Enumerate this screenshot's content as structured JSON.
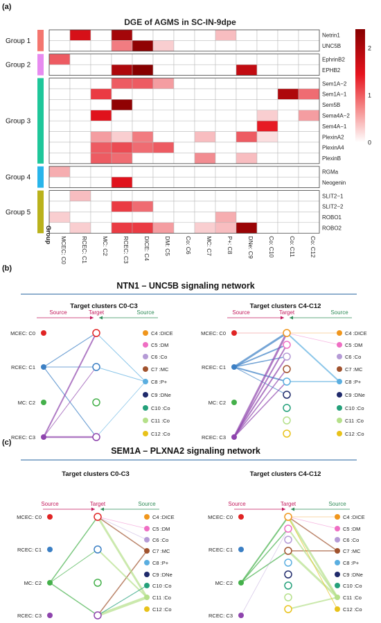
{
  "panel_a": {
    "letter": "(a)",
    "title": "DGE of AGMS in SC-IN-9dpe",
    "axis_label": "Group",
    "columns": [
      "MCEC: C0",
      "RCEC: C1",
      "MC: C2",
      "RCEC: C3",
      "DICE: C4",
      "DM: C5",
      "Co: C6",
      "MC: C7",
      "P+: C8",
      "DNe: C9",
      "Co: C10",
      "Co: C11",
      "Co: C12"
    ],
    "groups": [
      {
        "name": "Group 1",
        "color": "#f4766f",
        "rows": [
          "Netrin1",
          "UNC5B"
        ]
      },
      {
        "name": "Group 2",
        "color": "#e78bf0",
        "rows": [
          "EphrinB2",
          "EPHB2"
        ]
      },
      {
        "name": "Group 3",
        "color": "#1fc79a",
        "rows": [
          "Sem1A−2",
          "Sem1A−1",
          "Sem5B",
          "Sema4A−2",
          "Sem4A−1",
          "PlexinA2",
          "PlexinA4",
          "PlexinB"
        ]
      },
      {
        "name": "Group 4",
        "color": "#29b5ea",
        "rows": [
          "RGMa",
          "Neogenin"
        ]
      },
      {
        "name": "Group 5",
        "color": "#bab21c",
        "rows": [
          "SLIT2−1",
          "SLIT2−2",
          "ROBO1",
          "ROBO2"
        ]
      }
    ],
    "chart_data": {
      "type": "heatmap",
      "title": "DGE of AGMS in SC-IN-9dpe",
      "x_categories": [
        "MCEC: C0",
        "RCEC: C1",
        "MC: C2",
        "RCEC: C3",
        "DICE: C4",
        "DM: C5",
        "Co: C6",
        "MC: C7",
        "P+: C8",
        "DNe: C9",
        "Co: C10",
        "Co: C11",
        "Co: C12"
      ],
      "y_categories": [
        "Netrin1",
        "UNC5B",
        "EphrinB2",
        "EPHB2",
        "Sem1A−2",
        "Sem1A−1",
        "Sem5B",
        "Sema4A−2",
        "Sem4A−1",
        "PlexinA2",
        "PlexinA4",
        "PlexinB",
        "RGMa",
        "Neogenin",
        "SLIT2−1",
        "SLIT2−2",
        "ROBO1",
        "ROBO2"
      ],
      "values": [
        [
          0,
          1.6,
          0,
          2.1,
          0,
          0,
          0,
          0,
          0.4,
          0,
          0,
          0,
          0
        ],
        [
          0,
          0,
          0,
          0.8,
          2.3,
          0.3,
          0,
          0,
          0,
          0,
          0,
          0,
          0
        ],
        [
          1.0,
          0,
          0,
          0,
          0,
          0,
          0,
          0,
          0,
          0,
          0,
          0,
          0
        ],
        [
          0,
          0,
          0,
          2.0,
          2.4,
          0,
          0,
          0,
          0,
          1.8,
          0,
          0,
          0
        ],
        [
          0,
          0,
          0,
          1.0,
          1.0,
          0.6,
          0,
          0,
          0,
          0,
          0,
          0,
          0
        ],
        [
          0,
          0,
          1.2,
          0,
          0,
          0,
          0,
          0,
          0,
          0,
          0,
          2.0,
          0.9
        ],
        [
          0,
          0,
          0,
          2.3,
          0,
          0,
          0,
          0,
          0,
          0,
          0,
          0,
          0
        ],
        [
          0,
          0,
          1.5,
          0,
          0,
          0,
          0,
          0,
          0,
          0,
          0.3,
          0,
          0.6
        ],
        [
          0,
          0,
          0,
          0,
          0,
          0,
          0,
          0,
          0,
          0,
          1.4,
          0,
          0
        ],
        [
          0,
          0,
          0.6,
          0.3,
          0.8,
          0,
          0,
          0.4,
          0,
          1.0,
          0.2,
          0,
          0
        ],
        [
          0,
          0,
          1.0,
          1.1,
          0.9,
          1.0,
          0,
          0,
          0,
          0,
          0,
          0,
          0
        ],
        [
          0,
          0,
          1.0,
          0.9,
          0,
          0,
          0,
          0.7,
          0,
          0.4,
          0,
          0,
          0
        ],
        [
          0.5,
          0,
          0,
          0,
          0,
          0,
          0,
          0,
          0,
          0,
          0,
          0,
          0
        ],
        [
          0,
          0,
          0,
          1.5,
          0,
          0,
          0,
          0,
          0,
          0,
          0,
          0,
          0
        ],
        [
          0,
          0.4,
          0,
          0,
          0,
          0,
          0,
          0,
          0,
          0,
          0,
          0,
          0
        ],
        [
          0,
          0,
          0,
          1.2,
          0.9,
          0,
          0,
          0,
          0,
          0,
          0,
          0,
          0
        ],
        [
          0.3,
          0,
          0,
          0,
          0,
          0,
          0,
          0,
          0.5,
          0,
          0,
          0,
          0
        ],
        [
          0,
          0.3,
          0,
          1.2,
          1.2,
          0.6,
          0,
          0.3,
          0.4,
          2.2,
          0,
          0,
          0
        ]
      ],
      "colorbar_ticks": [
        "2",
        "1",
        "0"
      ],
      "color_range": [
        0,
        2.4
      ],
      "low_color": "#ffffff",
      "high_color": "#8b0000"
    }
  },
  "panel_b": {
    "letter": "(b)",
    "title": "NTN1 – UNC5B signaling network",
    "left_title": "Target clusters C0-C3",
    "right_title": "Target clusters C4-C12",
    "source_label": "Source",
    "target_label": "Target",
    "left_labels": [
      "MCEC: C0",
      "RCEC: C1",
      "MC: C2",
      "RCEC: C3"
    ],
    "right_labels": [
      "C4 :DICE",
      "C5 :DM",
      "C6 :Co",
      "C7 :MC",
      "C8 :P+",
      "C9 :DNe",
      "C10 :Co",
      "C11 :Co",
      "C12 :Co"
    ]
  },
  "panel_c": {
    "letter": "(c)",
    "title": "SEM1A – PLXNA2 signaling network",
    "left_title": "Target clusters C0-C3",
    "right_title": "Target clusters C4-C12",
    "source_label": "Source",
    "target_label": "Target",
    "left_labels": [
      "MCEC: C0",
      "RCEC: C1",
      "MC: C2",
      "RCEC: C3"
    ],
    "right_labels": [
      "C4 :DICE",
      "C5 :DM",
      "C6 :Co",
      "C7 :MC",
      "C8 :P+",
      "C9 :DNe",
      "C10 :Co",
      "C11 :Co",
      "C12 :Co"
    ]
  },
  "node_colors": [
    "#e02424",
    "#3b7fc4",
    "#44b04a",
    "#8e44ad",
    "#f0961c",
    "#ef6ec3",
    "#b59bd6",
    "#a0522d",
    "#5aaee0",
    "#1f2a6b",
    "#24a07a",
    "#b5e08a",
    "#e8c21a"
  ]
}
